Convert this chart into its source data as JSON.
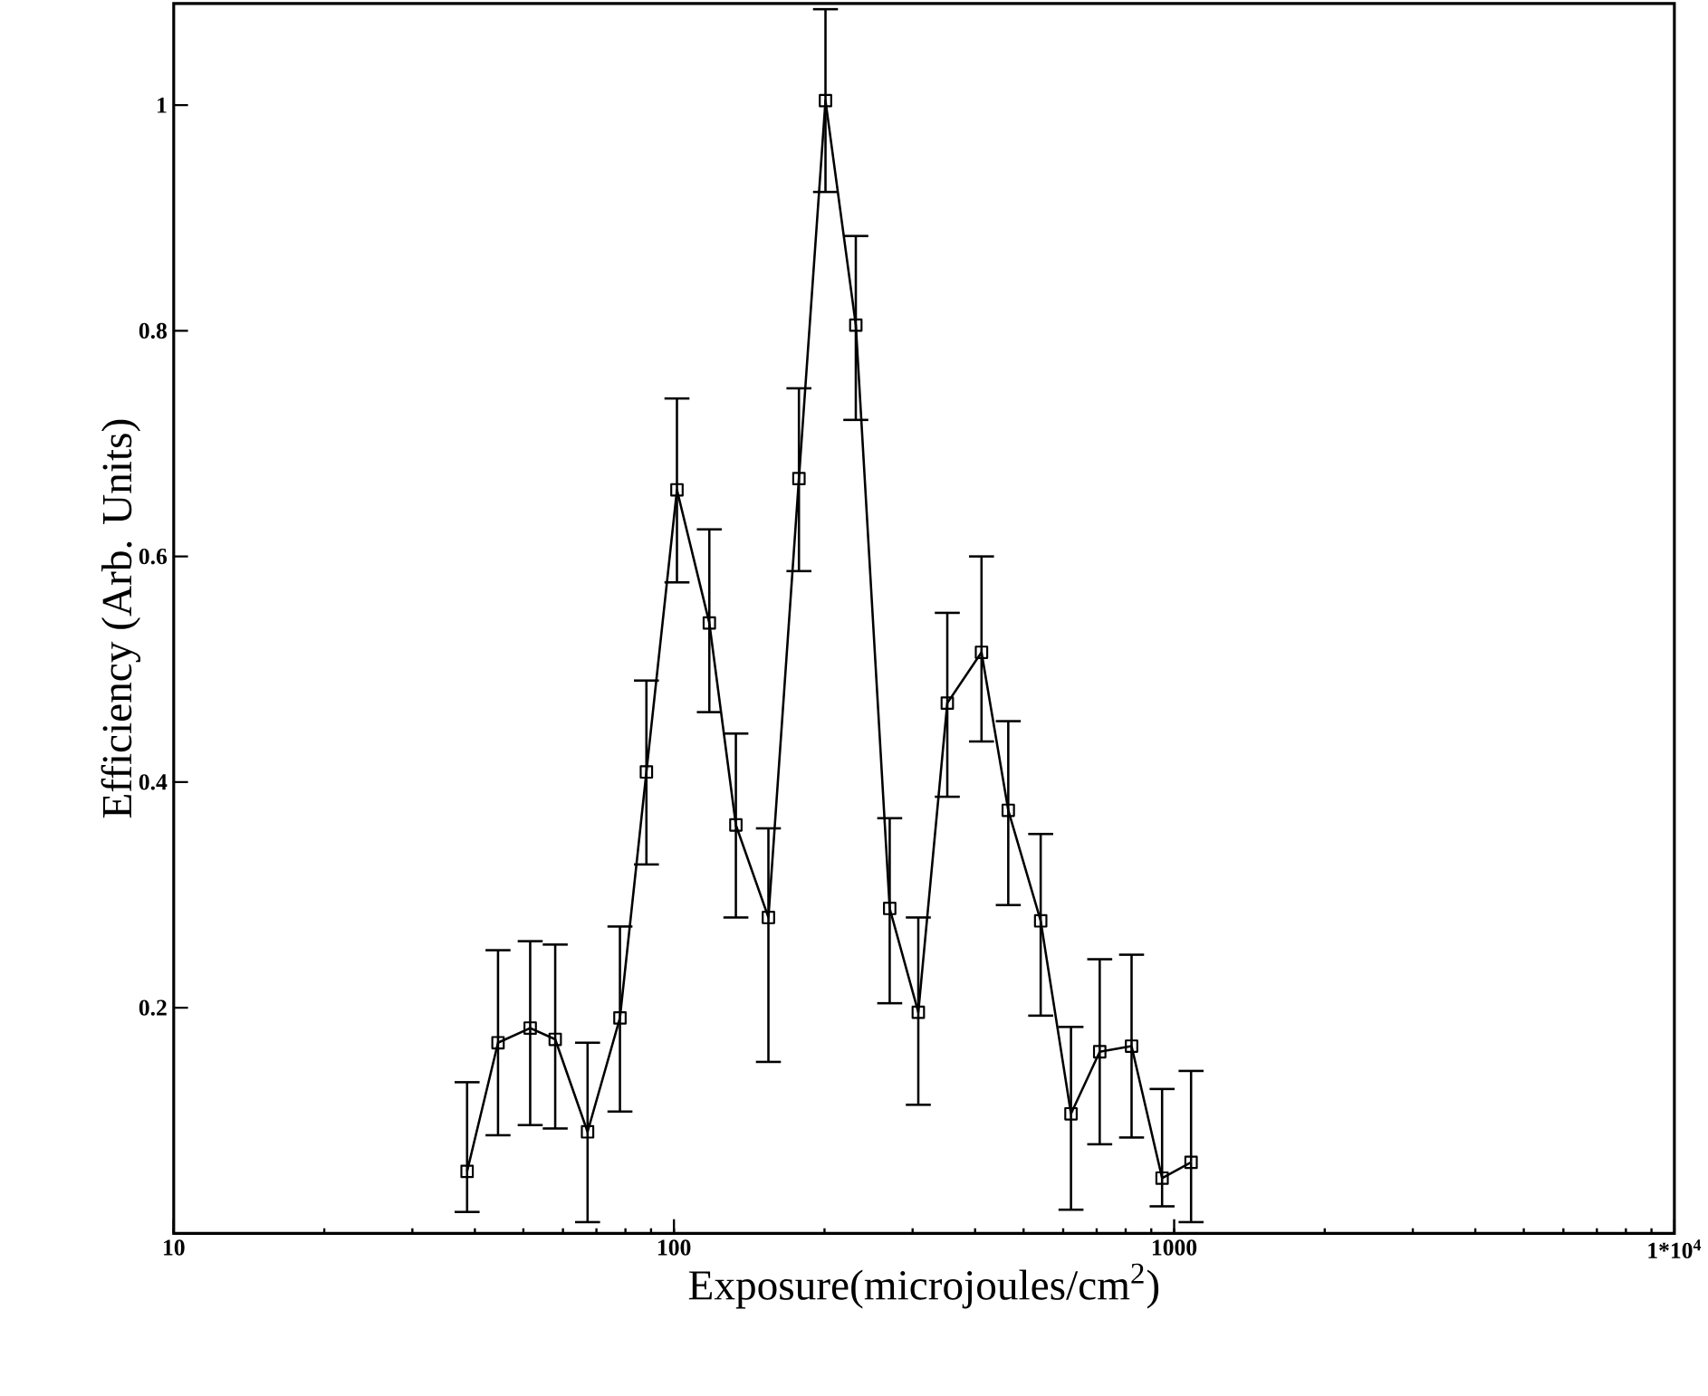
{
  "chart_data": {
    "type": "line",
    "xlabel": "Exposure(microjoules/cm$^{2}$)",
    "ylabel": "Efficiency (Arb. Units)",
    "log": "x",
    "xlim": [
      10,
      10000
    ],
    "xticks": [
      10,
      100,
      1000,
      {
        "value": 10000,
        "label": "1*10$^{4}$"
      }
    ],
    "ylim": [
      0,
      1.09
    ],
    "yticks": [
      0.2,
      0.4,
      0.6,
      0.8,
      1
    ],
    "x": [
      38.6,
      44.5,
      51.6,
      57.9,
      67.2,
      78,
      88.1,
      101.4,
      117.7,
      133,
      154.5,
      177.8,
      200.9,
      231,
      270,
      308,
      352,
      412,
      466,
      541,
      622,
      710,
      822,
      946,
      1081
    ],
    "series": [
      {
        "color": "#000000",
        "values": [
          0.055,
          0.169,
          0.182,
          0.172,
          0.09,
          0.191,
          0.409,
          0.659,
          0.541,
          0.362,
          0.28,
          0.669,
          1.004,
          0.805,
          0.288,
          0.196,
          0.47,
          0.515,
          0.375,
          0.277,
          0.106,
          0.161,
          0.166,
          0.049,
          0.063
        ],
        "errors": [
          [
            0.019,
            0.134
          ],
          [
            0.087,
            0.251
          ],
          [
            0.096,
            0.259
          ],
          [
            0.093,
            0.256
          ],
          [
            0.01,
            0.169
          ],
          [
            0.108,
            0.272
          ],
          [
            0.327,
            0.49
          ],
          [
            0.577,
            0.74
          ],
          [
            0.462,
            0.624
          ],
          [
            0.28,
            0.443
          ],
          [
            0.152,
            0.359
          ],
          [
            0.587,
            0.749
          ],
          [
            0.923,
            1.085
          ],
          [
            0.721,
            0.884
          ],
          [
            0.204,
            0.368
          ],
          [
            0.114,
            0.28
          ],
          [
            0.387,
            0.55
          ],
          [
            0.436,
            0.6
          ],
          [
            0.291,
            0.454
          ],
          [
            0.193,
            0.354
          ],
          [
            0.021,
            0.183
          ],
          [
            0.079,
            0.243
          ],
          [
            0.085,
            0.247
          ],
          [
            0.024,
            0.128
          ],
          [
            0.01,
            0.144
          ]
        ]
      }
    ],
    "marker": "square",
    "line_style": "solid"
  }
}
